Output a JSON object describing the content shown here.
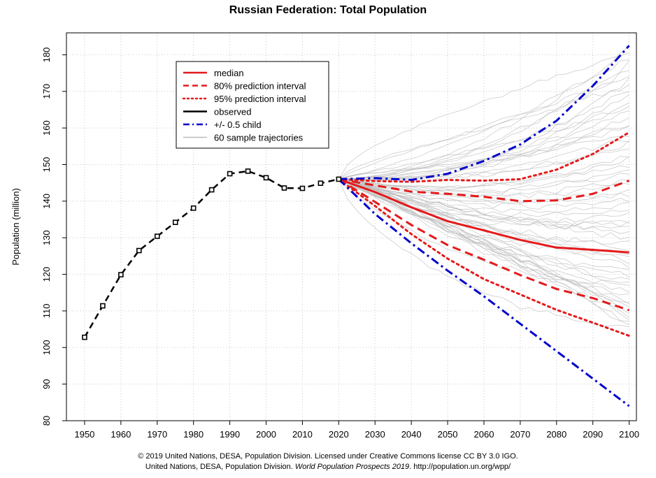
{
  "chart_data": {
    "type": "line",
    "title": "Russian Federation: Total Population",
    "xlabel": "",
    "ylabel": "Population (million)",
    "xlim": [
      1945,
      2102
    ],
    "ylim": [
      80,
      186
    ],
    "xticks": [
      1950,
      1960,
      1970,
      1980,
      1990,
      2000,
      2010,
      2020,
      2030,
      2040,
      2050,
      2060,
      2070,
      2080,
      2090,
      2100
    ],
    "yticks": [
      80,
      90,
      100,
      110,
      120,
      130,
      140,
      150,
      160,
      170,
      180
    ],
    "grid": true,
    "legend": {
      "position": "top-left",
      "entries": [
        {
          "label": "median",
          "color": "#e41a1c",
          "style": "solid"
        },
        {
          "label": "80% prediction interval",
          "color": "#e41a1c",
          "style": "dashed"
        },
        {
          "label": "95% prediction interval",
          "color": "#e41a1c",
          "style": "dotted"
        },
        {
          "label": "observed",
          "color": "#000000",
          "style": "solid"
        },
        {
          "label": "+/- 0.5 child",
          "color": "#0000cc",
          "style": "dashdot"
        },
        {
          "label": "60 sample trajectories",
          "color": "#bbbbbb",
          "style": "solid"
        }
      ]
    },
    "series": [
      {
        "name": "observed",
        "style": "dashed-markers",
        "color": "#000000",
        "x": [
          1950,
          1955,
          1960,
          1965,
          1970,
          1975,
          1980,
          1985,
          1990,
          1995,
          2000,
          2005,
          2010,
          2015,
          2020
        ],
        "values": [
          102.8,
          111.4,
          119.9,
          126.5,
          130.4,
          134.2,
          138.1,
          143.1,
          147.5,
          148.2,
          146.4,
          143.6,
          143.5,
          144.9,
          146.0
        ]
      },
      {
        "name": "median",
        "style": "solid",
        "color": "#e41a1c",
        "x": [
          2020,
          2030,
          2040,
          2050,
          2060,
          2070,
          2080,
          2090,
          2100
        ],
        "values": [
          146.0,
          142.5,
          138.3,
          134.5,
          132.0,
          129.4,
          127.3,
          126.7,
          126.0
        ]
      },
      {
        "name": "80% prediction interval (upper)",
        "style": "dashed",
        "color": "#e41a1c",
        "x": [
          2020,
          2030,
          2040,
          2050,
          2060,
          2070,
          2080,
          2090,
          2100
        ],
        "values": [
          146.0,
          144.3,
          142.6,
          142.0,
          141.2,
          140.0,
          140.2,
          142.0,
          145.6
        ]
      },
      {
        "name": "80% prediction interval (lower)",
        "style": "dashed",
        "color": "#e41a1c",
        "x": [
          2020,
          2030,
          2040,
          2050,
          2060,
          2070,
          2080,
          2090,
          2100
        ],
        "values": [
          146.0,
          139.8,
          133.5,
          128.0,
          124.0,
          119.8,
          116.0,
          113.5,
          110.2
        ]
      },
      {
        "name": "95% prediction interval (upper)",
        "style": "dotted",
        "color": "#e41a1c",
        "x": [
          2020,
          2030,
          2040,
          2050,
          2060,
          2070,
          2080,
          2090,
          2100
        ],
        "values": [
          146.0,
          145.5,
          145.3,
          145.8,
          145.6,
          146.0,
          148.6,
          152.9,
          158.8
        ]
      },
      {
        "name": "95% prediction interval (lower)",
        "style": "dotted",
        "color": "#e41a1c",
        "x": [
          2020,
          2030,
          2040,
          2050,
          2060,
          2070,
          2080,
          2090,
          2100
        ],
        "values": [
          146.0,
          138.7,
          131.0,
          124.3,
          118.7,
          114.5,
          110.3,
          106.8,
          103.2
        ]
      },
      {
        "name": "+/- 0.5 child (upper)",
        "style": "dashdot",
        "color": "#0000cc",
        "x": [
          2020,
          2030,
          2040,
          2050,
          2060,
          2070,
          2080,
          2090,
          2100
        ],
        "values": [
          146.0,
          146.3,
          145.8,
          147.5,
          151.0,
          155.5,
          162.0,
          171.5,
          182.5
        ]
      },
      {
        "name": "+/- 0.5 child (lower)",
        "style": "dashdot",
        "color": "#0000cc",
        "x": [
          2020,
          2030,
          2040,
          2050,
          2060,
          2070,
          2080,
          2090,
          2100
        ],
        "values": [
          146.0,
          136.5,
          128.5,
          121.0,
          114.0,
          106.5,
          99.0,
          91.5,
          84.0
        ]
      }
    ],
    "sample_trajectories": {
      "count": 60,
      "color": "#bbbbbb",
      "x_range": [
        2020,
        2100
      ],
      "start_value": 146.0,
      "end_range": [
        105,
        182
      ]
    }
  },
  "footer": {
    "line1": "© 2019 United Nations, DESA, Population Division. Licensed under Creative Commons license CC BY 3.0 IGO.",
    "line2_prefix": "United Nations, DESA, Population Division.",
    "line2_italic": "World Population Prospects 2019",
    "line2_suffix": ". http://population.un.org/wpp/"
  }
}
